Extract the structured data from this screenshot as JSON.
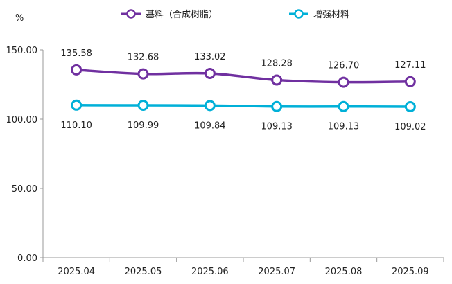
{
  "chart_data": {
    "type": "line",
    "ylabel": "%",
    "categories": [
      "2025.04",
      "2025.05",
      "2025.06",
      "2025.07",
      "2025.08",
      "2025.09"
    ],
    "ylim": [
      0,
      150
    ],
    "yticks": [
      "0.00",
      "50.00",
      "100.00",
      "150.00"
    ],
    "grid": false,
    "legend_position": "top",
    "series": [
      {
        "name": "基料（合成树脂）",
        "color": "#7030A0",
        "values": [
          135.58,
          132.68,
          133.02,
          128.28,
          126.7,
          127.11
        ],
        "labels": [
          "135.58",
          "132.68",
          "133.02",
          "128.28",
          "126.70",
          "127.11"
        ]
      },
      {
        "name": "增强材料",
        "color": "#00B0D8",
        "values": [
          110.1,
          109.99,
          109.84,
          109.13,
          109.13,
          109.02
        ],
        "labels": [
          "110.10",
          "109.99",
          "109.84",
          "109.13",
          "109.13",
          "109.02"
        ]
      }
    ]
  }
}
